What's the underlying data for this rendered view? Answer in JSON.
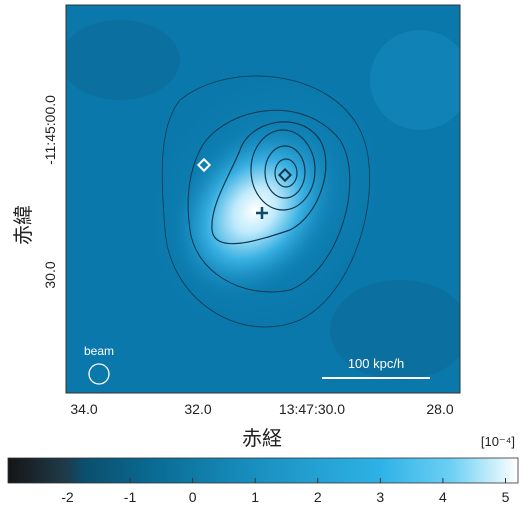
{
  "image": {
    "x_label": "赤経",
    "y_label": "赤緯",
    "x_ticks": [
      "34.0",
      "32.0",
      "13:47:30.0",
      "28.0"
    ],
    "y_ticks": [
      "-11:45:00.0",
      "30.0"
    ],
    "beam_label": "beam",
    "scale_label": "100 kpc/h"
  },
  "colorbar": {
    "unit_label": "[10⁻⁴]",
    "range": [
      -2.95,
      5.2
    ],
    "ticks": [
      -2,
      -1,
      0,
      1,
      2,
      3,
      4,
      5
    ]
  }
}
